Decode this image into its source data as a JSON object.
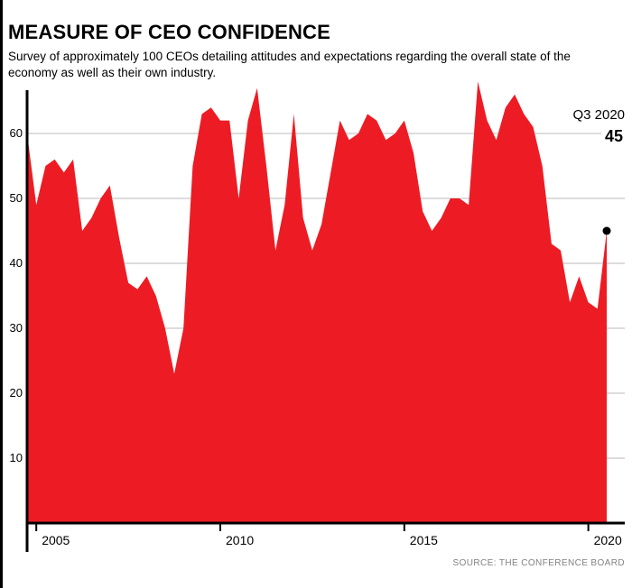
{
  "header": {
    "title": "MEASURE OF CEO CONFIDENCE",
    "subtitle": "Survey of approximately 100 CEOs detailing attitudes and expectations regarding the overall state of the economy as well as their own industry."
  },
  "annotation": {
    "label": "Q3 2020",
    "value": "45"
  },
  "source": "SOURCE: THE CONFERENCE BOARD",
  "colors": {
    "area": "#ed1c24",
    "grid": "#c8c8c8",
    "axis": "#000000",
    "dot": "#000000"
  },
  "chart_data": {
    "type": "area",
    "title": "MEASURE OF CEO CONFIDENCE",
    "frequency": "quarterly",
    "x_start": "2004-Q4",
    "x_end": "2020-Q3",
    "values": [
      60,
      49,
      55,
      56,
      54,
      56,
      45,
      47,
      50,
      52,
      44,
      37,
      36,
      38,
      35,
      30,
      23,
      30,
      55,
      63,
      64,
      62,
      62,
      50,
      62,
      67,
      55,
      42,
      49,
      63,
      47,
      42,
      46,
      54,
      62,
      59,
      60,
      63,
      62,
      59,
      60,
      62,
      57,
      48,
      45,
      47,
      50,
      50,
      49,
      68,
      62,
      59,
      64,
      66,
      63,
      61,
      55,
      43,
      42,
      34,
      38,
      34,
      33,
      45
    ],
    "ylim": [
      0,
      70
    ],
    "y_ticks": [
      10,
      20,
      30,
      40,
      50,
      60
    ],
    "x_ticks": [
      2005,
      2010,
      2015,
      2020
    ],
    "grid": true,
    "legend": "none",
    "highlight": {
      "label": "Q3 2020",
      "value": 45
    }
  }
}
